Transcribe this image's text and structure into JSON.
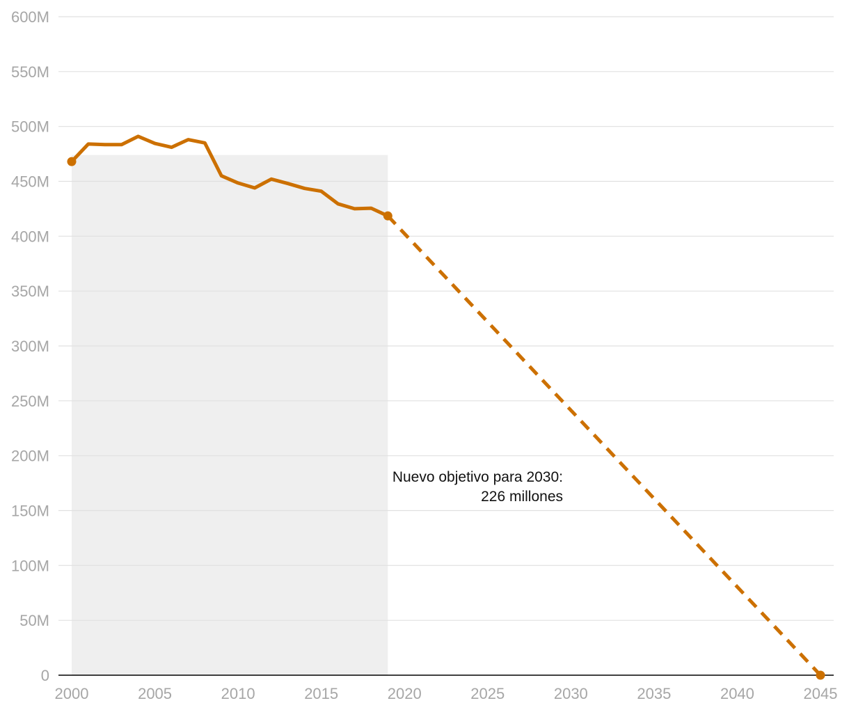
{
  "chart_data": {
    "type": "line",
    "title": "",
    "xlabel": "",
    "ylabel": "",
    "xlim": [
      2000,
      2045
    ],
    "ylim": [
      0,
      600
    ],
    "grid": true,
    "y_ticks": [
      0,
      50,
      100,
      150,
      200,
      250,
      300,
      350,
      400,
      450,
      500,
      550,
      600
    ],
    "y_tick_labels": [
      "0",
      "50M",
      "100M",
      "150M",
      "200M",
      "250M",
      "300M",
      "350M",
      "400M",
      "450M",
      "500M",
      "550M",
      "600M"
    ],
    "x_ticks": [
      2000,
      2005,
      2010,
      2015,
      2020,
      2025,
      2030,
      2035,
      2040,
      2045
    ],
    "x_tick_labels": [
      "2000",
      "2005",
      "2010",
      "2015",
      "2020",
      "2025",
      "2030",
      "2035",
      "2040",
      "2045"
    ],
    "shaded_region": {
      "x": [
        2000,
        2019
      ],
      "color": "#efefef"
    },
    "series": [
      {
        "style": "solid",
        "color": "#cc7000",
        "points": [
          [
            2000,
            468
          ],
          [
            2001,
            484
          ],
          [
            2002,
            483.5
          ],
          [
            2003,
            483.5
          ],
          [
            2004,
            491
          ],
          [
            2005,
            484.5
          ],
          [
            2006,
            481
          ],
          [
            2007,
            488
          ],
          [
            2008,
            485
          ],
          [
            2009,
            455
          ],
          [
            2010,
            448.5
          ],
          [
            2011,
            444
          ],
          [
            2012,
            452
          ],
          [
            2013,
            448
          ],
          [
            2014,
            443.5
          ],
          [
            2015,
            441
          ],
          [
            2016,
            429.5
          ],
          [
            2017,
            425
          ],
          [
            2018,
            425.5
          ],
          [
            2019,
            418.5
          ]
        ],
        "markers": [
          [
            2000,
            468
          ],
          [
            2019,
            418.5
          ]
        ]
      },
      {
        "style": "dashed",
        "color": "#cc7000",
        "points": [
          [
            2019,
            418.5
          ],
          [
            2045,
            0
          ]
        ],
        "markers": [
          [
            2045,
            0
          ]
        ]
      }
    ],
    "annotation": {
      "lines": [
        "Nuevo objetivo para 2030:",
        "226 millones"
      ],
      "x": 2030,
      "y": 226
    }
  }
}
